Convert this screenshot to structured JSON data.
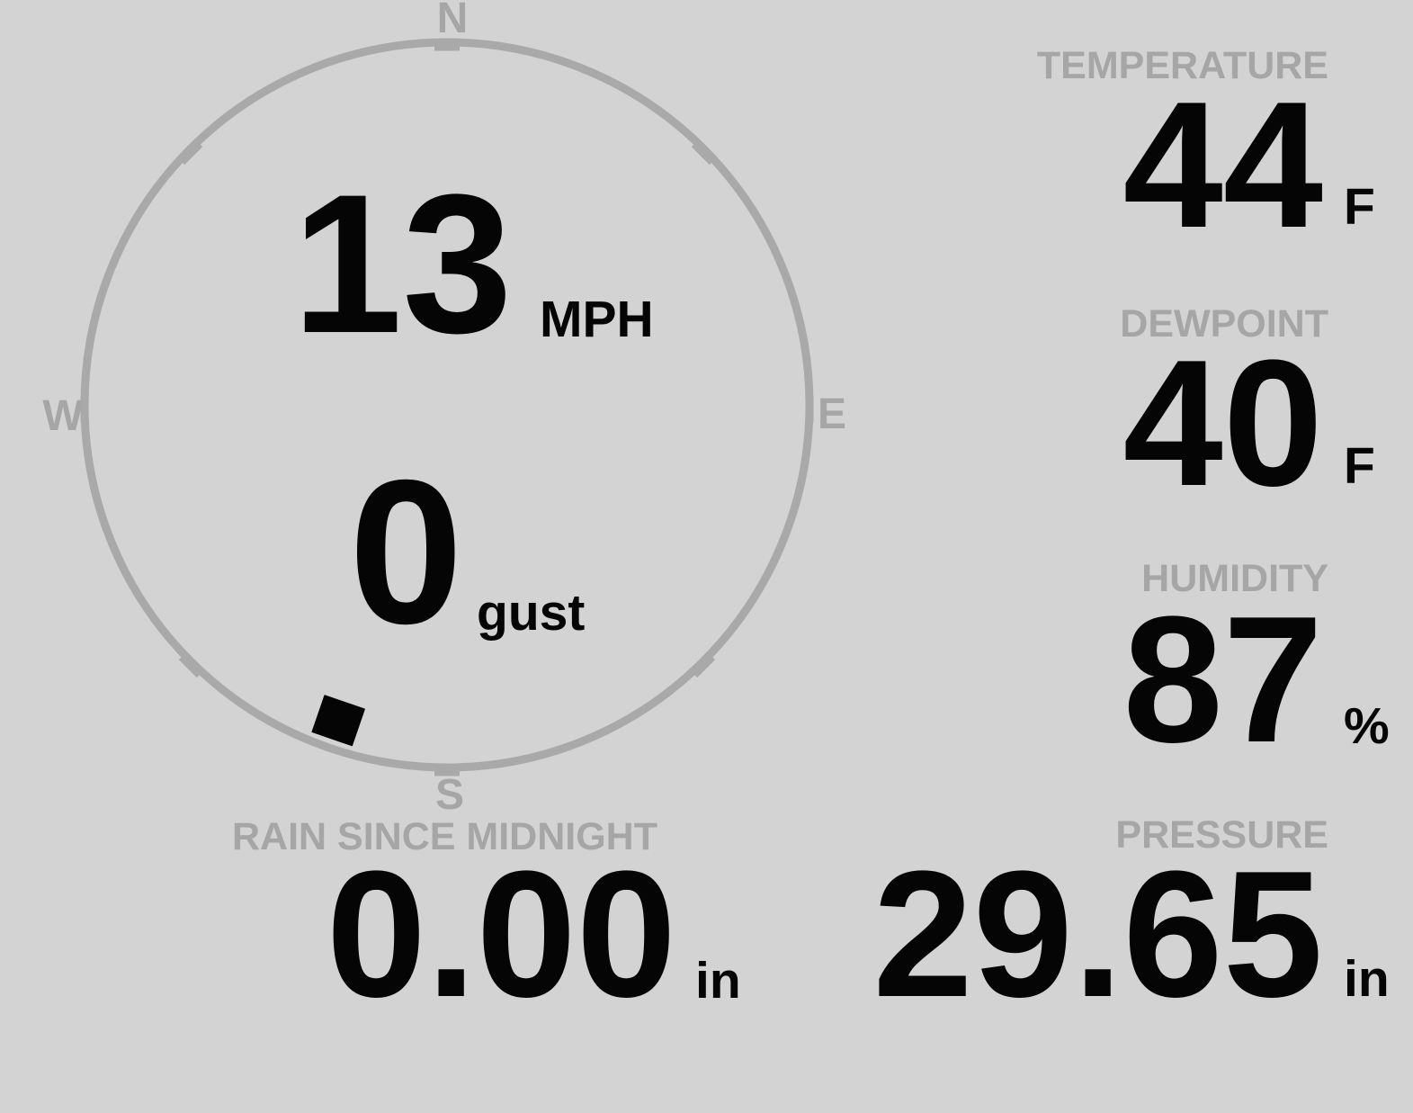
{
  "colors": {
    "background": "#d3d3d3",
    "muted_gray": "#a6a6a6",
    "ring_gray": "#a9a9a9",
    "value_black": "#050505"
  },
  "compass": {
    "direction_labels": {
      "north": "N",
      "east": "E",
      "south": "S",
      "west": "W"
    },
    "wind_speed": {
      "value": "13",
      "unit": "MPH"
    },
    "wind_gust": {
      "value": "0",
      "unit": "gust"
    },
    "wind_direction_deg": 199
  },
  "metrics": {
    "temperature": {
      "label": "TEMPERATURE",
      "value": "44",
      "unit": "F"
    },
    "dewpoint": {
      "label": "DEWPOINT",
      "value": "40",
      "unit": "F"
    },
    "humidity": {
      "label": "HUMIDITY",
      "value": "87",
      "unit": "%"
    },
    "pressure": {
      "label": "PRESSURE",
      "value": "29.65",
      "unit": "in"
    },
    "rain": {
      "label": "RAIN SINCE MIDNIGHT",
      "value": "0.00",
      "unit": "in"
    }
  }
}
